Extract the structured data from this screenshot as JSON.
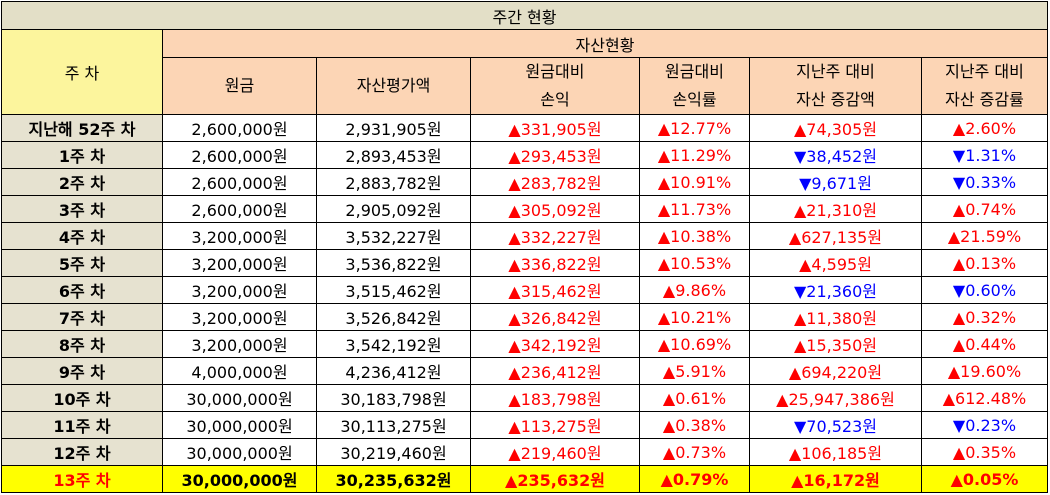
{
  "title": "주간 현황",
  "headers": {
    "week": "주 차",
    "group": "자산현황",
    "principal": "원금",
    "asset_value": "자산평가액",
    "pnl": [
      "원금대비",
      "손익"
    ],
    "pnl_rate": [
      "원금대비",
      "손익률"
    ],
    "wow_amount": [
      "지난주 대비",
      "자산 증감액"
    ],
    "wow_rate": [
      "지난주 대비",
      "자산 증감률"
    ]
  },
  "rows": [
    {
      "week": "지난해 52주 차",
      "principal": "2,600,000원",
      "asset": "2,931,905원",
      "pnl": "▲331,905원",
      "pnl_dir": "up",
      "pnl_rate": "▲12.77%",
      "pnl_rate_dir": "up",
      "wow": "▲74,305원",
      "wow_dir": "up",
      "wow_rate": "▲2.60%",
      "wow_rate_dir": "up"
    },
    {
      "week": "1주 차",
      "principal": "2,600,000원",
      "asset": "2,893,453원",
      "pnl": "▲293,453원",
      "pnl_dir": "up",
      "pnl_rate": "▲11.29%",
      "pnl_rate_dir": "up",
      "wow": "▼38,452원",
      "wow_dir": "down",
      "wow_rate": "▼1.31%",
      "wow_rate_dir": "down"
    },
    {
      "week": "2주 차",
      "principal": "2,600,000원",
      "asset": "2,883,782원",
      "pnl": "▲283,782원",
      "pnl_dir": "up",
      "pnl_rate": "▲10.91%",
      "pnl_rate_dir": "up",
      "wow": "▼9,671원",
      "wow_dir": "down",
      "wow_rate": "▼0.33%",
      "wow_rate_dir": "down"
    },
    {
      "week": "3주 차",
      "principal": "2,600,000원",
      "asset": "2,905,092원",
      "pnl": "▲305,092원",
      "pnl_dir": "up",
      "pnl_rate": "▲11.73%",
      "pnl_rate_dir": "up",
      "wow": "▲21,310원",
      "wow_dir": "up",
      "wow_rate": "▲0.74%",
      "wow_rate_dir": "up"
    },
    {
      "week": "4주 차",
      "principal": "3,200,000원",
      "asset": "3,532,227원",
      "pnl": "▲332,227원",
      "pnl_dir": "up",
      "pnl_rate": "▲10.38%",
      "pnl_rate_dir": "up",
      "wow": "▲627,135원",
      "wow_dir": "up",
      "wow_rate": "▲21.59%",
      "wow_rate_dir": "up"
    },
    {
      "week": "5주 차",
      "principal": "3,200,000원",
      "asset": "3,536,822원",
      "pnl": "▲336,822원",
      "pnl_dir": "up",
      "pnl_rate": "▲10.53%",
      "pnl_rate_dir": "up",
      "wow": "▲4,595원",
      "wow_dir": "up",
      "wow_rate": "▲0.13%",
      "wow_rate_dir": "up"
    },
    {
      "week": "6주 차",
      "principal": "3,200,000원",
      "asset": "3,515,462원",
      "pnl": "▲315,462원",
      "pnl_dir": "up",
      "pnl_rate": "▲9.86%",
      "pnl_rate_dir": "up",
      "wow": "▼21,360원",
      "wow_dir": "down",
      "wow_rate": "▼0.60%",
      "wow_rate_dir": "down"
    },
    {
      "week": "7주 차",
      "principal": "3,200,000원",
      "asset": "3,526,842원",
      "pnl": "▲326,842원",
      "pnl_dir": "up",
      "pnl_rate": "▲10.21%",
      "pnl_rate_dir": "up",
      "wow": "▲11,380원",
      "wow_dir": "up",
      "wow_rate": "▲0.32%",
      "wow_rate_dir": "up"
    },
    {
      "week": "8주 차",
      "principal": "3,200,000원",
      "asset": "3,542,192원",
      "pnl": "▲342,192원",
      "pnl_dir": "up",
      "pnl_rate": "▲10.69%",
      "pnl_rate_dir": "up",
      "wow": "▲15,350원",
      "wow_dir": "up",
      "wow_rate": "▲0.44%",
      "wow_rate_dir": "up"
    },
    {
      "week": "9주 차",
      "principal": "4,000,000원",
      "asset": "4,236,412원",
      "pnl": "▲236,412원",
      "pnl_dir": "up",
      "pnl_rate": "▲5.91%",
      "pnl_rate_dir": "up",
      "wow": "▲694,220원",
      "wow_dir": "up",
      "wow_rate": "▲19.60%",
      "wow_rate_dir": "up"
    },
    {
      "week": "10주 차",
      "principal": "30,000,000원",
      "asset": "30,183,798원",
      "pnl": "▲183,798원",
      "pnl_dir": "up",
      "pnl_rate": "▲0.61%",
      "pnl_rate_dir": "up",
      "wow": "▲25,947,386원",
      "wow_dir": "up",
      "wow_rate": "▲612.48%",
      "wow_rate_dir": "up"
    },
    {
      "week": "11주 차",
      "principal": "30,000,000원",
      "asset": "30,113,275원",
      "pnl": "▲113,275원",
      "pnl_dir": "up",
      "pnl_rate": "▲0.38%",
      "pnl_rate_dir": "up",
      "wow": "▼70,523원",
      "wow_dir": "down",
      "wow_rate": "▼0.23%",
      "wow_rate_dir": "down"
    },
    {
      "week": "12주 차",
      "principal": "30,000,000원",
      "asset": "30,219,460원",
      "pnl": "▲219,460원",
      "pnl_dir": "up",
      "pnl_rate": "▲0.73%",
      "pnl_rate_dir": "up",
      "wow": "▲106,185원",
      "wow_dir": "up",
      "wow_rate": "▲0.35%",
      "wow_rate_dir": "up"
    },
    {
      "week": "13주 차",
      "principal": "30,000,000원",
      "asset": "30,235,632원",
      "pnl": "▲235,632원",
      "pnl_dir": "up",
      "pnl_rate": "▲0.79%",
      "pnl_rate_dir": "up",
      "wow": "▲16,172원",
      "wow_dir": "up",
      "wow_rate": "▲0.05%",
      "wow_rate_dir": "up",
      "highlight": true
    }
  ],
  "colors": {
    "up": "#ff0000",
    "down": "#0000ff",
    "highlight": "#ffff00",
    "header": "#fcd5b5",
    "week_header": "#fcf59d"
  }
}
